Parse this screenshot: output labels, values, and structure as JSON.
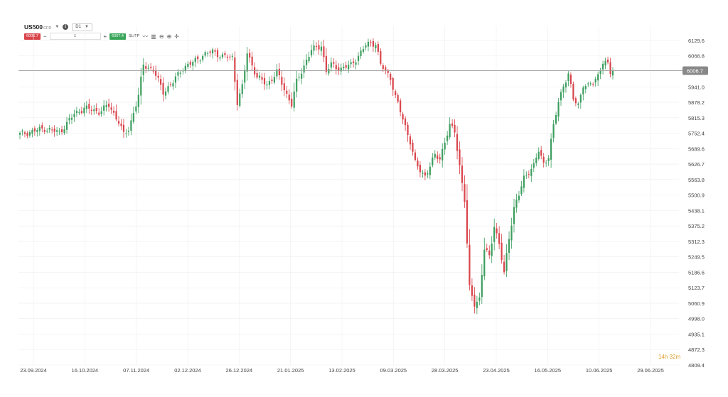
{
  "toolbar": {
    "symbol": "US500",
    "symbol_sub": "CFD",
    "timeframe": "D1",
    "sell_price": "6006.7",
    "buy_price": "6007.4",
    "quantity": "1",
    "minus": "−",
    "plus": "+",
    "sltp": "SL/TP"
  },
  "countdown": "14h 32m",
  "colors": {
    "up": "#3a9d5d",
    "down": "#d9434a",
    "grid": "#eeeeee",
    "price_line": "#999999",
    "price_tag": "#888888"
  },
  "chart_data": {
    "type": "candlestick",
    "current_price": 6006.7,
    "y_ticks": [
      "6129.6",
      "6066.8",
      "6006.7",
      "5941.0",
      "5878.2",
      "5815.3",
      "5752.4",
      "5689.6",
      "5626.7",
      "5563.8",
      "5500.9",
      "5438.1",
      "5375.2",
      "5312.3",
      "5249.5",
      "5186.6",
      "5123.7",
      "5060.9",
      "4998.0",
      "4935.1",
      "4872.3",
      "4809.4"
    ],
    "ylim": [
      4809.4,
      6129.6
    ],
    "x_ticks": [
      "23.09.2024",
      "16.10.2024",
      "07.11.2024",
      "02.12.2024",
      "26.12.2024",
      "21.01.2025",
      "13.02.2025",
      "09.03.2025",
      "28.03.2025",
      "23.04.2025",
      "16.05.2025",
      "10.06.2025",
      "29.06.2025"
    ],
    "waypoints": [
      [
        0,
        5748
      ],
      [
        10,
        5772
      ],
      [
        16,
        5755
      ],
      [
        22,
        5830
      ],
      [
        26,
        5855
      ],
      [
        32,
        5840
      ],
      [
        36,
        5865
      ],
      [
        40,
        5800
      ],
      [
        42,
        5745
      ],
      [
        44,
        5768
      ],
      [
        48,
        5905
      ],
      [
        50,
        6030
      ],
      [
        54,
        6010
      ],
      [
        58,
        5920
      ],
      [
        62,
        5960
      ],
      [
        66,
        6020
      ],
      [
        70,
        6040
      ],
      [
        74,
        6070
      ],
      [
        78,
        6085
      ],
      [
        82,
        6065
      ],
      [
        86,
        6060
      ],
      [
        88,
        5880
      ],
      [
        90,
        5940
      ],
      [
        92,
        6080
      ],
      [
        96,
        5980
      ],
      [
        100,
        5950
      ],
      [
        104,
        6000
      ],
      [
        108,
        5910
      ],
      [
        110,
        5870
      ],
      [
        112,
        5960
      ],
      [
        116,
        6050
      ],
      [
        118,
        6090
      ],
      [
        122,
        6110
      ],
      [
        124,
        6005
      ],
      [
        126,
        6030
      ],
      [
        130,
        6015
      ],
      [
        134,
        6030
      ],
      [
        138,
        6080
      ],
      [
        140,
        6110
      ],
      [
        142,
        6120
      ],
      [
        144,
        6118
      ],
      [
        146,
        6030
      ],
      [
        150,
        5980
      ],
      [
        152,
        5900
      ],
      [
        154,
        5840
      ],
      [
        156,
        5780
      ],
      [
        158,
        5720
      ],
      [
        160,
        5630
      ],
      [
        162,
        5600
      ],
      [
        164,
        5580
      ],
      [
        166,
        5620
      ],
      [
        168,
        5660
      ],
      [
        170,
        5650
      ],
      [
        172,
        5720
      ],
      [
        174,
        5780
      ],
      [
        176,
        5760
      ],
      [
        178,
        5620
      ],
      [
        180,
        5480
      ],
      [
        182,
        5120
      ],
      [
        184,
        5060
      ],
      [
        186,
        5080
      ],
      [
        188,
        5280
      ],
      [
        190,
        5250
      ],
      [
        192,
        5380
      ],
      [
        194,
        5300
      ],
      [
        196,
        5180
      ],
      [
        198,
        5330
      ],
      [
        200,
        5450
      ],
      [
        202,
        5500
      ],
      [
        204,
        5570
      ],
      [
        206,
        5600
      ],
      [
        208,
        5620
      ],
      [
        210,
        5680
      ],
      [
        212,
        5630
      ],
      [
        214,
        5660
      ],
      [
        216,
        5780
      ],
      [
        218,
        5880
      ],
      [
        220,
        5950
      ],
      [
        222,
        5990
      ],
      [
        224,
        5890
      ],
      [
        226,
        5870
      ],
      [
        228,
        5950
      ],
      [
        230,
        5940
      ],
      [
        232,
        5960
      ],
      [
        234,
        5990
      ],
      [
        236,
        6040
      ],
      [
        238,
        6030
      ],
      [
        240,
        5970
      ]
    ]
  }
}
